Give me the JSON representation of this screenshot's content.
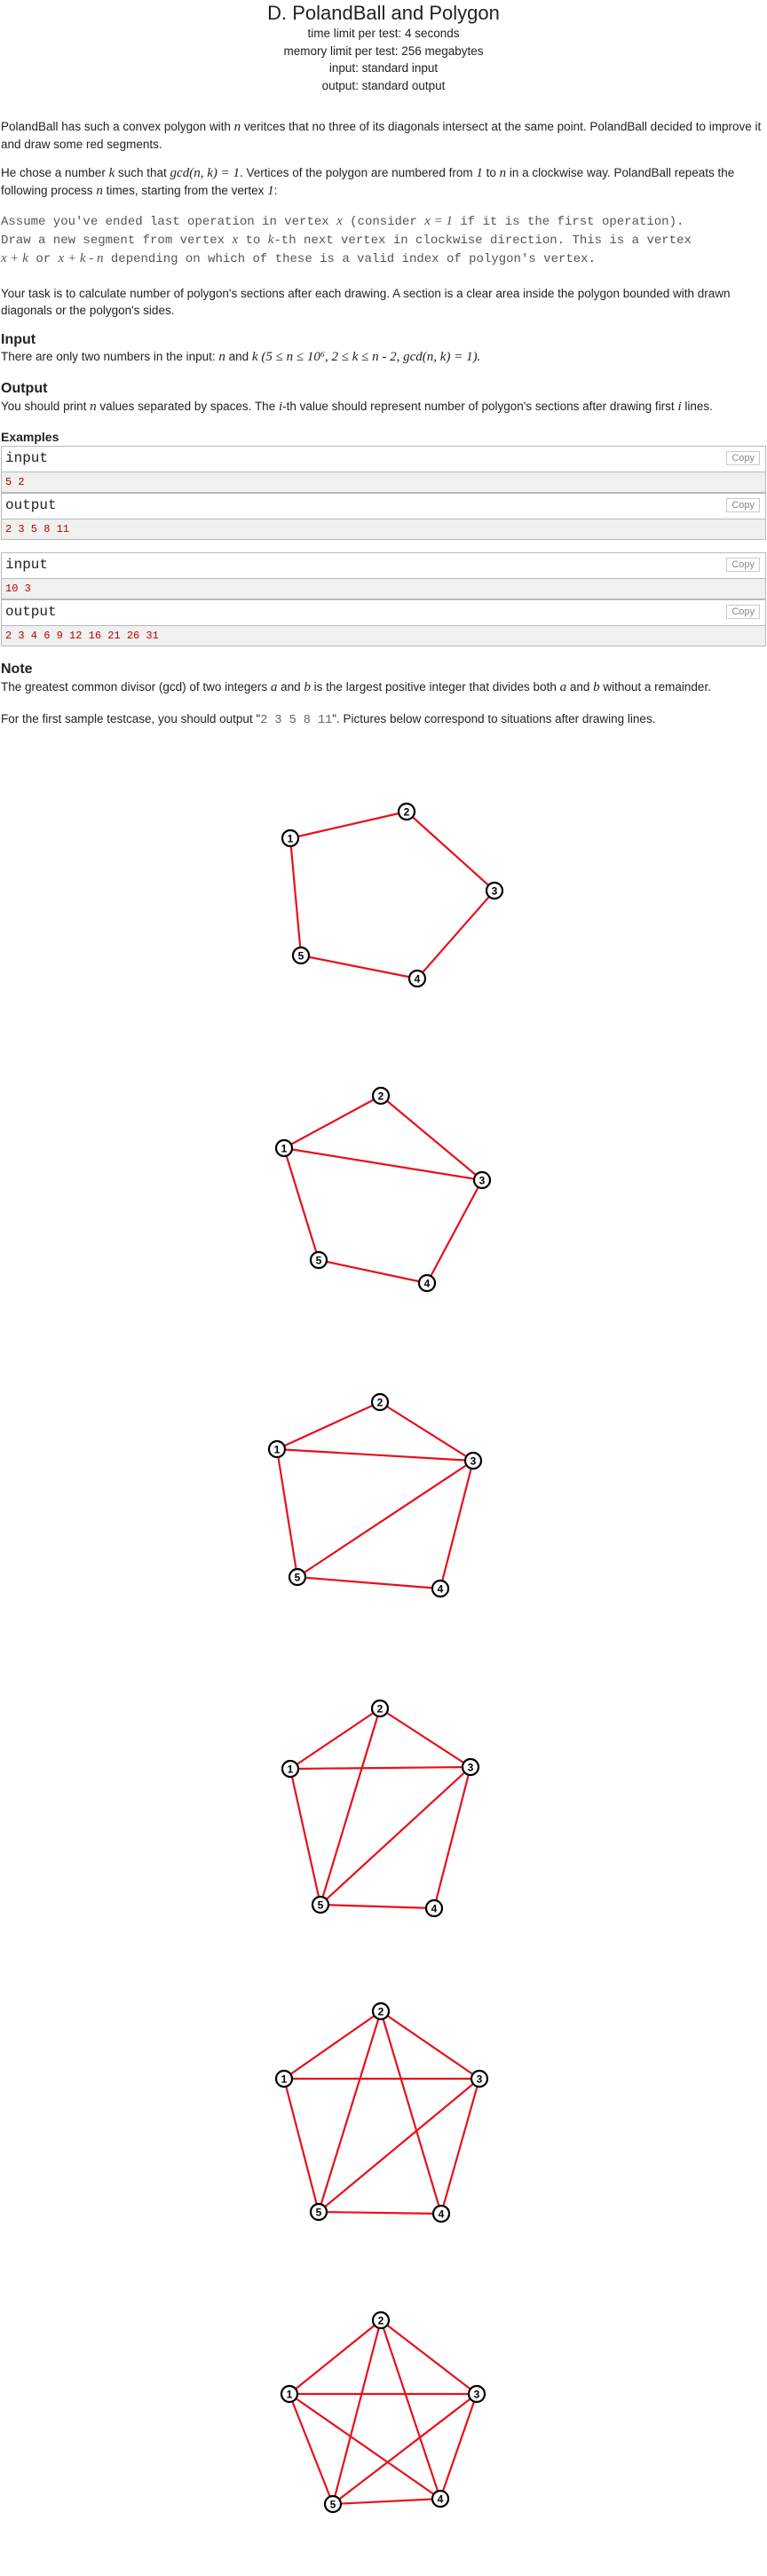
{
  "header": {
    "title": "D. PolandBall and Polygon",
    "time_limit": "time limit per test: 4 seconds",
    "memory_limit": "memory limit per test: 256 megabytes",
    "input": "input: standard input",
    "output": "output: standard output"
  },
  "statement": {
    "p1a": "PolandBall has such a convex polygon with ",
    "p1b": " veritces that no three of its diagonals intersect at the same point. PolandBall decided to improve it and draw some red segments.",
    "p2a": "He chose a number ",
    "p2b": " such that ",
    "p2c": ". Vertices of the polygon are numbered from ",
    "p2d": " to ",
    "p2e": " in a clockwise way. PolandBall repeats the following process ",
    "p2f": " times, starting from the vertex ",
    "p2g": ":",
    "m1a": "Assume you've ended last operation in vertex ",
    "m1b": " (consider ",
    "m1c": " if it is the first operation).",
    "m2a": "Draw a new segment from vertex ",
    "m2b": " to ",
    "m2c": "-th next vertex in clockwise direction. This is a vertex",
    "m3a": " or ",
    "m3b": " depending on which of these is a valid index of polygon's vertex.",
    "p3": "Your task is to calculate number of polygon's sections after each drawing. A section is a clear area inside the polygon bounded with drawn diagonals or the polygon's sides."
  },
  "math": {
    "n": "n",
    "k": "k",
    "gcd": "gcd(n, k) = 1",
    "one": "1",
    "x": "x",
    "x1": "x = 1",
    "xk": "x + k",
    "xkn": "x + k - n",
    "i": "i"
  },
  "input_section": {
    "heading": "Input",
    "texta": "There are only two numbers in the input: ",
    "textb": " and ",
    "constraint": "(5 ≤ n ≤ 10⁶, 2 ≤ k ≤ n - 2, gcd(n, k) = 1)."
  },
  "output_section": {
    "heading": "Output",
    "texta": "You should print ",
    "textb": " values separated by spaces. The ",
    "textc": "-th value should represent number of polygon's sections after drawing first ",
    "textd": " lines."
  },
  "examples": {
    "heading": "Examples",
    "input_label": "input",
    "output_label": "output",
    "copy": "Copy",
    "items": [
      {
        "input": "5 2",
        "output": "2 3 5 8 11"
      },
      {
        "input": "10 3",
        "output": "2 3 4 6 9 12 16 21 26 31"
      }
    ]
  },
  "note": {
    "heading": "Note",
    "gcd_a": "The greatest common divisor (gcd) of two integers ",
    "gcd_b": " and ",
    "gcd_c": " is the largest positive integer that divides both ",
    "gcd_d": " and ",
    "gcd_e": " without a remainder.",
    "a": "a",
    "b": "b",
    "sample_a": "For the first sample testcase, you should output \"",
    "sample_code": "2 3 5 8 11",
    "sample_b": "\". Pictures below correspond to situations after drawing lines."
  },
  "figure": {
    "vertex_labels": [
      "1",
      "2",
      "3",
      "4",
      "5"
    ],
    "line_color": "#e8101a",
    "steps": 6
  }
}
